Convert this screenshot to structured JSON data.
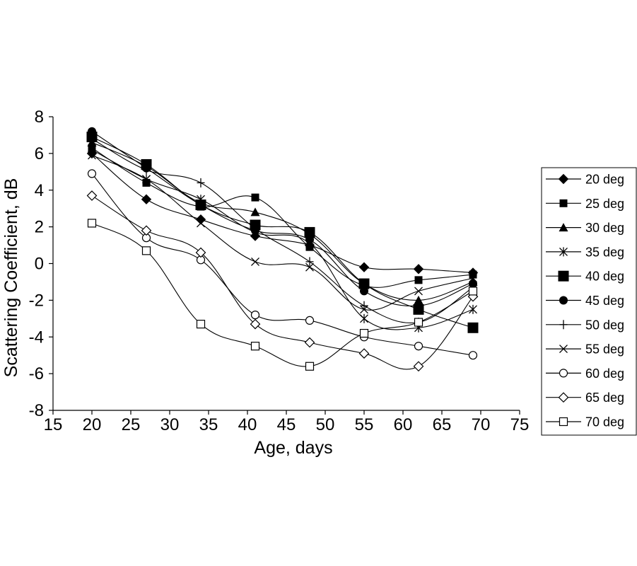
{
  "chart_data": {
    "type": "line",
    "title": "",
    "xlabel": "Age, days",
    "ylabel": "Scattering Coefficient, dB",
    "xlim": [
      15,
      75
    ],
    "ylim": [
      -8,
      8
    ],
    "xticks": [
      15,
      20,
      25,
      30,
      35,
      40,
      45,
      50,
      55,
      60,
      65,
      70,
      75
    ],
    "yticks": [
      -8,
      -6,
      -4,
      -2,
      0,
      2,
      4,
      6,
      8
    ],
    "x": [
      20,
      27,
      34,
      41,
      48,
      55,
      62,
      69
    ],
    "legend_position": "right",
    "series": [
      {
        "name": "20 deg",
        "marker": "diamond-filled",
        "values": [
          6.0,
          3.5,
          2.4,
          1.5,
          1.0,
          -0.2,
          -0.3,
          -0.5
        ]
      },
      {
        "name": "25 deg",
        "marker": "square-filled",
        "values": [
          6.3,
          4.4,
          3.1,
          3.6,
          0.9,
          -1.2,
          -0.9,
          -0.6
        ]
      },
      {
        "name": "30 deg",
        "marker": "triangle-filled",
        "values": [
          6.6,
          5.3,
          3.3,
          2.8,
          1.6,
          -1.1,
          -2.0,
          -1.0
        ]
      },
      {
        "name": "35 deg",
        "marker": "asterisk",
        "values": [
          6.2,
          4.6,
          3.5,
          1.7,
          1.1,
          -3.0,
          -3.5,
          -2.5
        ]
      },
      {
        "name": "40 deg",
        "marker": "square-filled-large",
        "values": [
          6.9,
          5.4,
          3.2,
          2.1,
          1.7,
          -1.1,
          -2.5,
          -3.5
        ]
      },
      {
        "name": "45 deg",
        "marker": "circle-filled",
        "values": [
          7.2,
          5.2,
          3.2,
          1.8,
          1.3,
          -1.5,
          -2.3,
          -1.1
        ]
      },
      {
        "name": "50 deg",
        "marker": "plus",
        "values": [
          6.8,
          5.1,
          4.4,
          1.9,
          0.1,
          -2.3,
          -3.2,
          -1.3
        ]
      },
      {
        "name": "55 deg",
        "marker": "cross",
        "values": [
          5.9,
          4.6,
          2.2,
          0.1,
          -0.2,
          -2.5,
          -1.5,
          -0.8
        ]
      },
      {
        "name": "60 deg",
        "marker": "circle-open",
        "values": [
          4.9,
          1.4,
          0.2,
          -2.8,
          -3.1,
          -4.0,
          -4.5,
          -5.0
        ]
      },
      {
        "name": "65 deg",
        "marker": "diamond-open",
        "values": [
          3.7,
          1.8,
          0.6,
          -3.3,
          -4.3,
          -4.9,
          -5.6,
          -1.8
        ]
      },
      {
        "name": "70 deg",
        "marker": "square-open",
        "values": [
          2.2,
          0.7,
          -3.3,
          -4.5,
          -5.6,
          -3.8,
          -3.2,
          -1.5
        ]
      }
    ]
  }
}
